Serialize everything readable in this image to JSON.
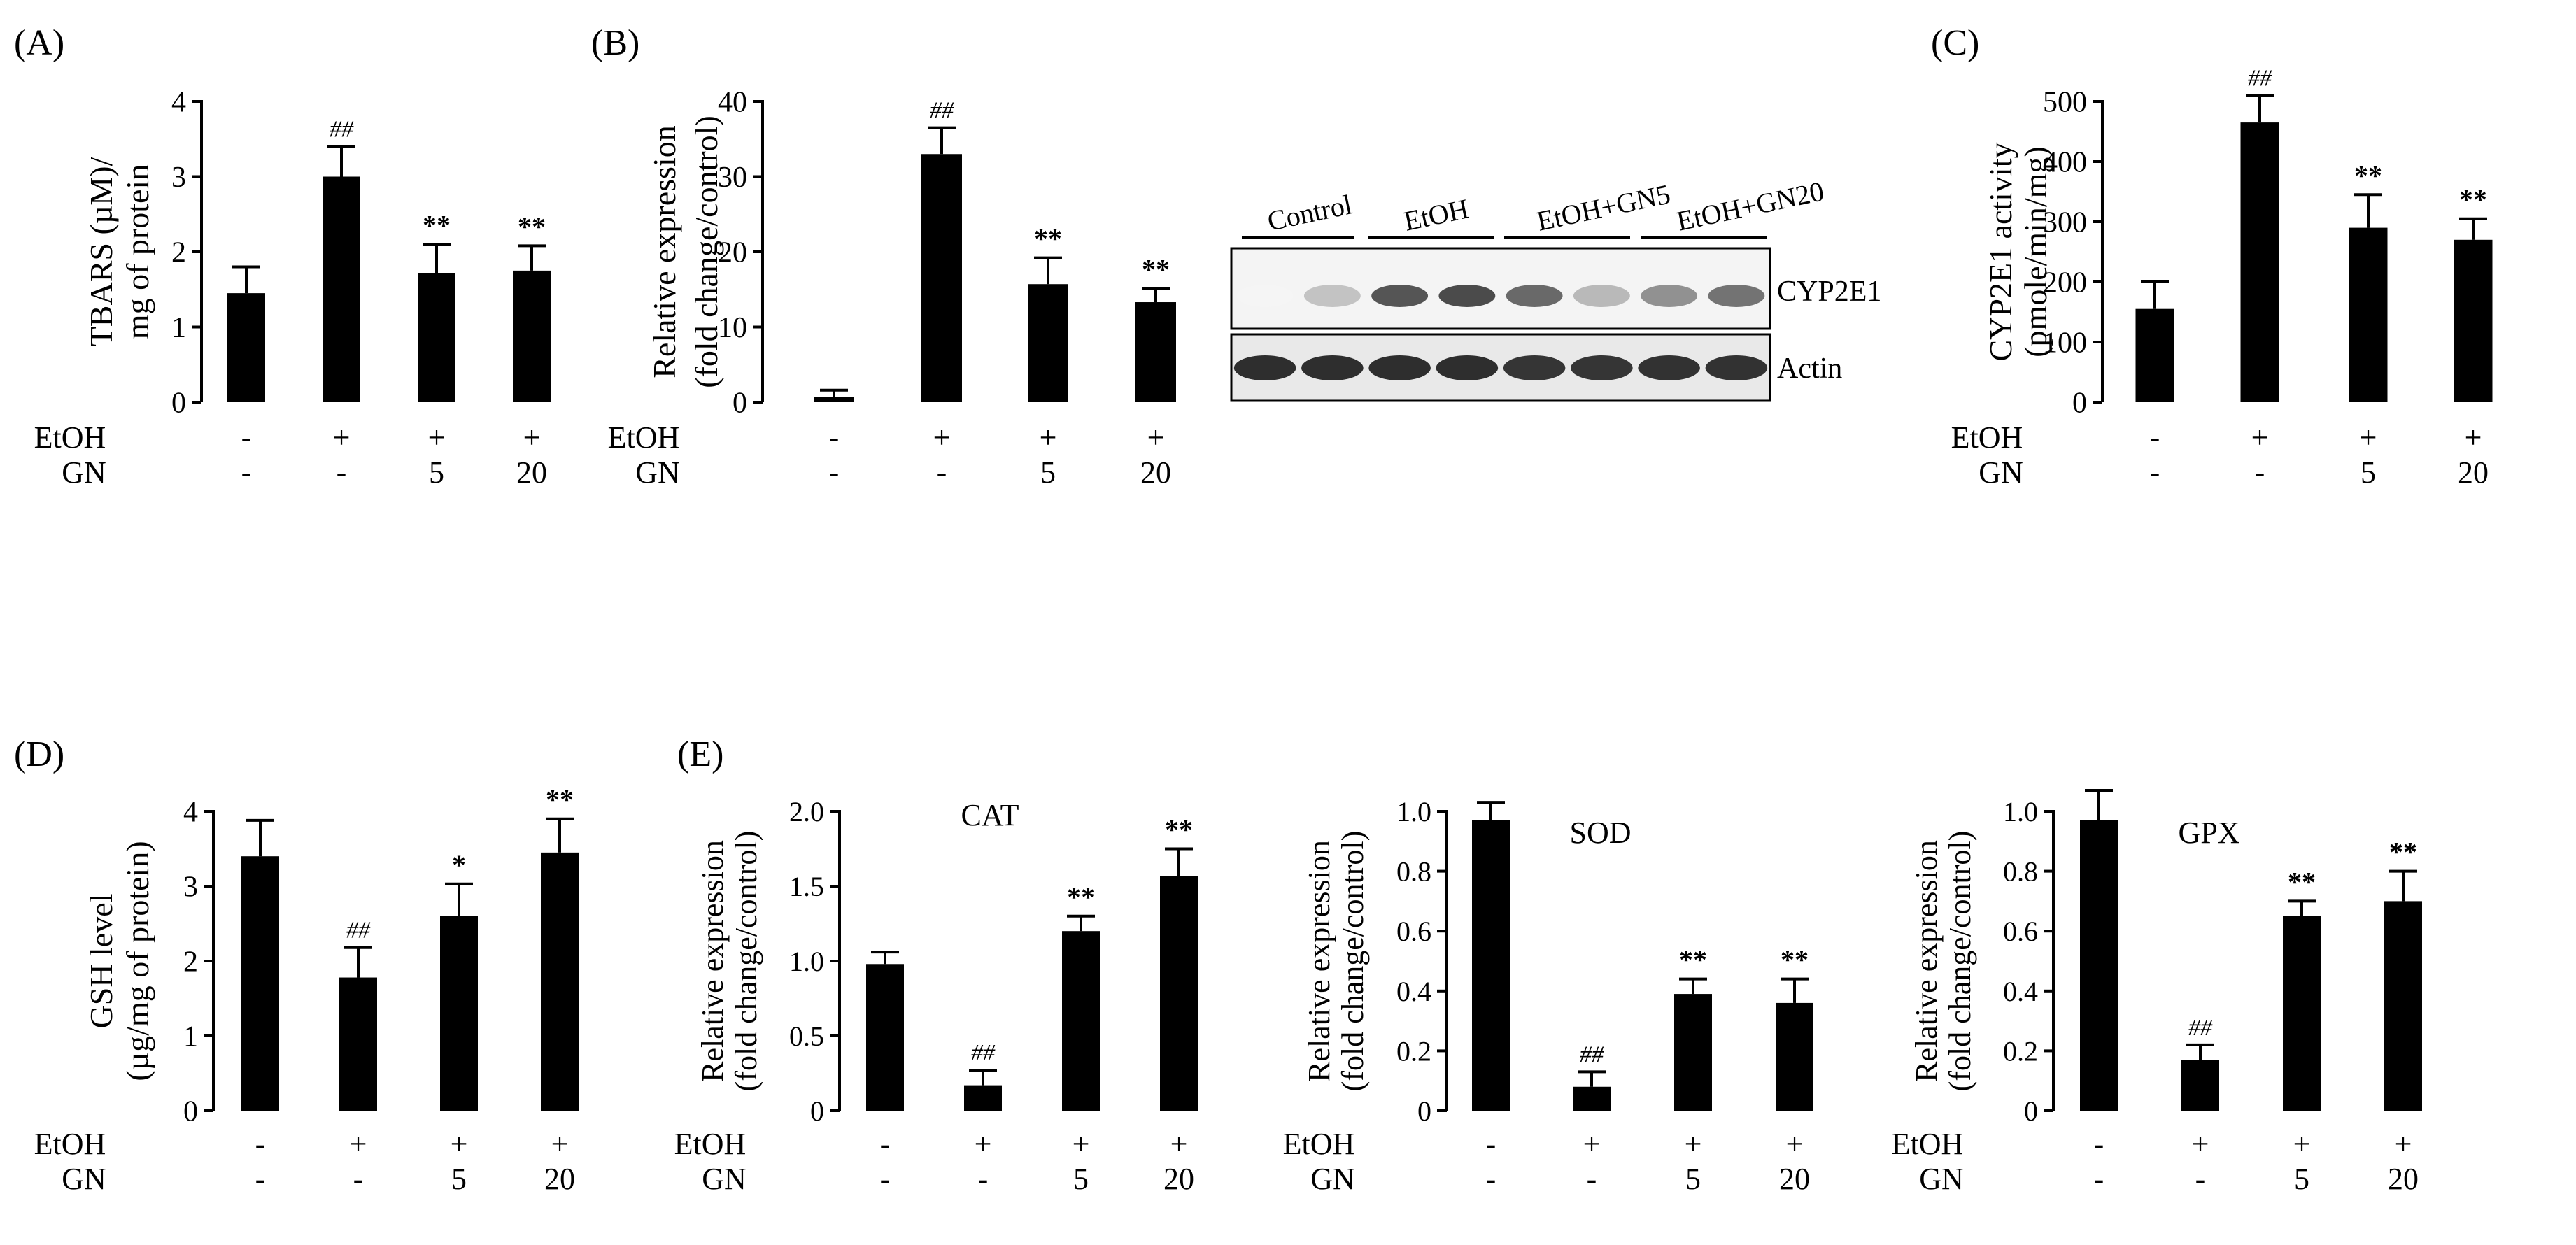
{
  "figure": {
    "colors": {
      "bar": "#000000",
      "axis": "#000000",
      "background": "#ffffff"
    },
    "treatment_labels": {
      "row1": "EtOH",
      "row2": "GN"
    }
  },
  "chart_data": [
    {
      "id": "A",
      "panel_label": "(A)",
      "type": "bar",
      "title": "",
      "ylabel_lines": [
        "TBARS (µM)/",
        "mg of protein"
      ],
      "ylim": [
        0,
        4
      ],
      "yticks": [
        0,
        1,
        2,
        3,
        4
      ],
      "ytick_labels": [
        "0",
        "1",
        "2",
        "3",
        "4"
      ],
      "categories": [
        "Control",
        "EtOH",
        "EtOH+GN5",
        "EtOH+GN20"
      ],
      "etoh": [
        "-",
        "+",
        "+",
        "+"
      ],
      "gn": [
        "-",
        "-",
        "5",
        "20"
      ],
      "values": [
        1.45,
        3.0,
        1.72,
        1.75
      ],
      "errors": [
        0.35,
        0.4,
        0.38,
        0.33
      ],
      "annotations": [
        "",
        "##",
        "**",
        "**"
      ]
    },
    {
      "id": "B",
      "panel_label": "(B)",
      "type": "bar",
      "title": "",
      "ylabel_lines": [
        "Relative expression",
        "(fold change/control)"
      ],
      "ylim": [
        0,
        40
      ],
      "yticks": [
        0,
        10,
        20,
        30,
        40
      ],
      "ytick_labels": [
        "0",
        "10",
        "20",
        "30",
        "40"
      ],
      "categories": [
        "Control",
        "EtOH",
        "EtOH+GN5",
        "EtOH+GN20"
      ],
      "etoh": [
        "-",
        "+",
        "+",
        "+"
      ],
      "gn": [
        "-",
        "-",
        "5",
        "20"
      ],
      "values": [
        0.7,
        33,
        15.7,
        13.3
      ],
      "errors": [
        0.9,
        3.5,
        3.5,
        1.8
      ],
      "annotations": [
        "",
        "##",
        "**",
        "**"
      ]
    },
    {
      "id": "C",
      "panel_label": "(C)",
      "type": "bar",
      "title": "",
      "ylabel_lines": [
        "CYP2E1 activity",
        "(pmole/min/mg)"
      ],
      "ylim": [
        0,
        500
      ],
      "yticks": [
        0,
        100,
        200,
        300,
        400,
        500
      ],
      "ytick_labels": [
        "0",
        "100",
        "200",
        "300",
        "400",
        "500"
      ],
      "categories": [
        "Control",
        "EtOH",
        "EtOH+GN5",
        "EtOH+GN20"
      ],
      "etoh": [
        "-",
        "+",
        "+",
        "+"
      ],
      "gn": [
        "-",
        "-",
        "5",
        "20"
      ],
      "values": [
        155,
        465,
        290,
        270
      ],
      "errors": [
        45,
        45,
        55,
        35
      ],
      "annotations": [
        "",
        "##",
        "**",
        "**"
      ]
    },
    {
      "id": "D",
      "panel_label": "(D)",
      "type": "bar",
      "title": "",
      "ylabel_lines": [
        "GSH level",
        "(µg/mg of protein)"
      ],
      "ylim": [
        0,
        4
      ],
      "yticks": [
        0,
        1,
        2,
        3,
        4
      ],
      "ytick_labels": [
        "0",
        "1",
        "2",
        "3",
        "4"
      ],
      "categories": [
        "Control",
        "EtOH",
        "EtOH+GN5",
        "EtOH+GN20"
      ],
      "etoh": [
        "-",
        "+",
        "+",
        "+"
      ],
      "gn": [
        "-",
        "-",
        "5",
        "20"
      ],
      "values": [
        3.4,
        1.78,
        2.6,
        3.45
      ],
      "errors": [
        0.48,
        0.4,
        0.43,
        0.45
      ],
      "annotations": [
        "",
        "##",
        "*",
        "**"
      ]
    },
    {
      "id": "E1",
      "panel_label": "(E)",
      "type": "bar",
      "title": "CAT",
      "ylabel_lines": [
        "Relative expression",
        "(fold change/control)"
      ],
      "ylim": [
        0,
        2.0
      ],
      "yticks": [
        0,
        0.5,
        1.0,
        1.5,
        2.0
      ],
      "ytick_labels": [
        "0",
        "0.5",
        "1.0",
        "1.5",
        "2.0"
      ],
      "categories": [
        "Control",
        "EtOH",
        "EtOH+GN5",
        "EtOH+GN20"
      ],
      "etoh": [
        "-",
        "+",
        "+",
        "+"
      ],
      "gn": [
        "-",
        "-",
        "5",
        "20"
      ],
      "values": [
        0.98,
        0.17,
        1.2,
        1.57
      ],
      "errors": [
        0.08,
        0.1,
        0.1,
        0.18
      ],
      "annotations": [
        "",
        "##",
        "**",
        "**"
      ]
    },
    {
      "id": "E2",
      "panel_label": "",
      "type": "bar",
      "title": "SOD",
      "ylabel_lines": [
        "Relative expression",
        "(fold change/control)"
      ],
      "ylim": [
        0,
        1.0
      ],
      "yticks": [
        0,
        0.2,
        0.4,
        0.6,
        0.8,
        1.0
      ],
      "ytick_labels": [
        "0",
        "0.2",
        "0.4",
        "0.6",
        "0.8",
        "1.0"
      ],
      "categories": [
        "Control",
        "EtOH",
        "EtOH+GN5",
        "EtOH+GN20"
      ],
      "etoh": [
        "-",
        "+",
        "+",
        "+"
      ],
      "gn": [
        "-",
        "-",
        "5",
        "20"
      ],
      "values": [
        0.97,
        0.08,
        0.39,
        0.36
      ],
      "errors": [
        0.06,
        0.05,
        0.05,
        0.08
      ],
      "annotations": [
        "",
        "##",
        "**",
        "**"
      ]
    },
    {
      "id": "E3",
      "panel_label": "",
      "type": "bar",
      "title": "GPX",
      "ylabel_lines": [
        "Relative expression",
        "(fold change/control)"
      ],
      "ylim": [
        0,
        1.0
      ],
      "yticks": [
        0,
        0.2,
        0.4,
        0.6,
        0.8,
        1.0
      ],
      "ytick_labels": [
        "0",
        "0.2",
        "0.4",
        "0.6",
        "0.8",
        "1.0"
      ],
      "categories": [
        "Control",
        "EtOH",
        "EtOH+GN5",
        "EtOH+GN20"
      ],
      "etoh": [
        "-",
        "+",
        "+",
        "+"
      ],
      "gn": [
        "-",
        "-",
        "5",
        "20"
      ],
      "values": [
        0.97,
        0.17,
        0.65,
        0.7
      ],
      "errors": [
        0.1,
        0.05,
        0.05,
        0.1
      ],
      "annotations": [
        "",
        "##",
        "**",
        "**"
      ]
    }
  ],
  "western_blot": {
    "lane_groups": [
      "Control",
      "EtOH",
      "EtOH+GN5",
      "EtOH+GN20"
    ],
    "bands": [
      "CYP2E1",
      "Actin"
    ],
    "cyp2e1_intensity": [
      0.05,
      0.3,
      0.85,
      0.9,
      0.75,
      0.35,
      0.55,
      0.7
    ],
    "actin_intensity": [
      0.95,
      0.95,
      0.95,
      0.95,
      0.92,
      0.92,
      0.93,
      0.93
    ]
  }
}
